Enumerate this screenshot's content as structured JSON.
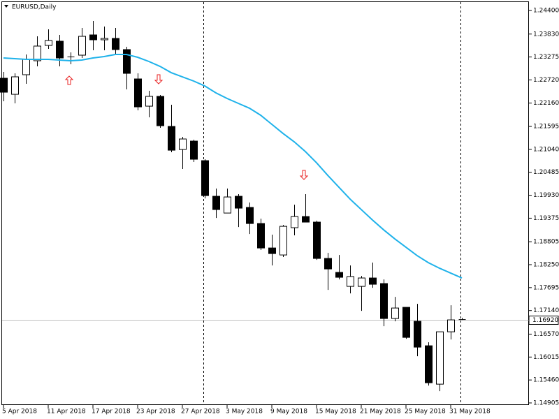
{
  "chart_data": {
    "type": "candlestick",
    "title": "EURUSD,Daily",
    "categories": [
      "5 Apr 2018",
      null,
      null,
      null,
      "11 Apr 2018",
      null,
      null,
      null,
      "17 Apr 2018",
      null,
      null,
      null,
      "23 Apr 2018",
      null,
      null,
      null,
      "27 Apr 2018",
      null,
      null,
      null,
      "3 May 2018",
      null,
      null,
      null,
      "9 May 2018",
      null,
      null,
      null,
      "15 May 2018",
      null,
      null,
      null,
      "21 May 2018",
      null,
      null,
      null,
      "25 May 2018",
      null,
      null,
      null,
      "31 May 2018",
      null
    ],
    "open": [
      1.22761,
      1.22372,
      1.22846,
      1.23184,
      1.23555,
      1.23657,
      1.23277,
      1.23319,
      1.23809,
      1.23691,
      1.23724,
      1.23454,
      1.22744,
      1.22085,
      1.22322,
      1.21595,
      1.21037,
      1.2124,
      1.20767,
      1.19905,
      1.19499,
      1.19905,
      1.19635,
      1.19246,
      1.18654,
      1.18485,
      1.19145,
      1.19415,
      1.1928,
      1.18401,
      1.18063,
      1.17725,
      1.17725,
      1.17928,
      1.17793,
      1.16948,
      1.17218,
      1.1688,
      1.16288,
      1.15359,
      1.16626,
      1.16922
    ],
    "high": [
      1.22913,
      1.22879,
      1.23336,
      1.23775,
      1.23944,
      1.23809,
      1.23386,
      1.23978,
      1.24147,
      1.24012,
      1.23978,
      1.23522,
      1.22879,
      1.22457,
      1.22356,
      1.22119,
      1.21342,
      1.21274,
      1.20801,
      1.20091,
      1.20091,
      1.19956,
      1.19753,
      1.19364,
      1.18976,
      1.19212,
      1.19702,
      1.19956,
      1.19314,
      1.18536,
      1.18485,
      1.18232,
      1.17978,
      1.183,
      1.17894,
      1.17471,
      1.17218,
      1.17302,
      1.16373,
      1.16626,
      1.17269,
      1.16964
    ],
    "low": [
      1.22203,
      1.22153,
      1.22626,
      1.23048,
      1.23471,
      1.23048,
      1.23099,
      1.23251,
      1.23437,
      1.23437,
      1.23336,
      1.22491,
      1.21984,
      1.21815,
      1.21561,
      1.2097,
      1.20564,
      1.20733,
      1.19854,
      1.19381,
      1.19499,
      1.19161,
      1.18992,
      1.18604,
      1.18232,
      1.18435,
      1.18959,
      1.1928,
      1.18367,
      1.1764,
      1.17894,
      1.17556,
      1.17133,
      1.17691,
      1.16762,
      1.1688,
      1.16457,
      1.16035,
      1.15325,
      1.1519,
      1.16441,
      1.16914
    ],
    "close": [
      1.22423,
      1.22795,
      1.23217,
      1.23539,
      1.23674,
      1.23251,
      1.23268,
      1.23775,
      1.23691,
      1.23724,
      1.23454,
      1.22879,
      1.22068,
      1.22322,
      1.21612,
      1.2102,
      1.21291,
      1.20801,
      1.19922,
      1.19584,
      1.19888,
      1.19618,
      1.19246,
      1.18654,
      1.18519,
      1.19178,
      1.19415,
      1.1928,
      1.18401,
      1.18147,
      1.17945,
      1.17962,
      1.17928,
      1.17776,
      1.16948,
      1.17201,
      1.16491,
      1.16255,
      1.15393,
      1.16626,
      1.16914,
      1.1692
    ],
    "up_color": "#ffffff",
    "down_color": "#000000",
    "line": {
      "color": "#1fb2ea",
      "values": [
        1.23251,
        1.23234,
        1.23217,
        1.23217,
        1.23217,
        1.23201,
        1.23184,
        1.23201,
        1.23251,
        1.23285,
        1.23336,
        1.23336,
        1.23268,
        1.23167,
        1.23048,
        1.22896,
        1.22795,
        1.22694,
        1.22575,
        1.22406,
        1.22271,
        1.22153,
        1.22036,
        1.21866,
        1.21646,
        1.21426,
        1.21223,
        1.20987,
        1.20716,
        1.20412,
        1.20125,
        1.19837,
        1.19584,
        1.19331,
        1.19094,
        1.18874,
        1.18671,
        1.18469,
        1.18299,
        1.18164,
        1.18046,
        1.17928
      ]
    },
    "current_price": {
      "value": 1.1692,
      "label": "1.16920"
    },
    "ylim": [
      1.14854,
      1.2462
    ],
    "yticks": [
      {
        "value": 1.244,
        "label": "1.24400"
      },
      {
        "value": 1.2383,
        "label": "1.23830"
      },
      {
        "value": 1.23275,
        "label": "1.23275"
      },
      {
        "value": 1.2272,
        "label": "1.22720"
      },
      {
        "value": 1.2216,
        "label": "1.22160"
      },
      {
        "value": 1.21595,
        "label": "1.21595"
      },
      {
        "value": 1.2104,
        "label": "1.21040"
      },
      {
        "value": 1.20485,
        "label": "1.20485"
      },
      {
        "value": 1.1993,
        "label": "1.19930"
      },
      {
        "value": 1.19375,
        "label": "1.19375"
      },
      {
        "value": 1.18805,
        "label": "1.18805"
      },
      {
        "value": 1.1825,
        "label": "1.18250"
      },
      {
        "value": 1.17695,
        "label": "1.17695"
      },
      {
        "value": 1.1714,
        "label": "1.17140"
      },
      {
        "value": 1.1657,
        "label": "1.16570"
      },
      {
        "value": 1.16015,
        "label": "1.16015"
      },
      {
        "value": 1.1546,
        "label": "1.15460"
      },
      {
        "value": 1.14905,
        "label": "1.14905"
      }
    ]
  }
}
